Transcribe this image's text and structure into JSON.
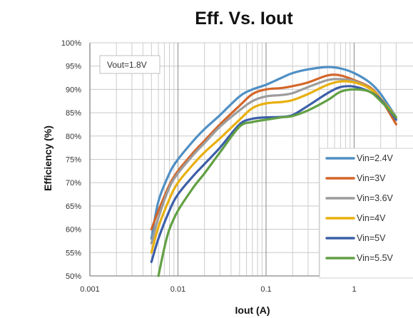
{
  "chart_data": {
    "type": "line",
    "title": "Eff. Vs. Iout",
    "xlabel": "Iout (A)",
    "ylabel": "Efficiency (%)",
    "x_scale": "log",
    "xlim": [
      0.001,
      3
    ],
    "ylim": [
      50,
      100
    ],
    "x_ticks": [
      {
        "value": 0.001,
        "label": "0.001"
      },
      {
        "value": 0.01,
        "label": "0.01"
      },
      {
        "value": 0.1,
        "label": "0.1"
      },
      {
        "value": 1,
        "label": "1"
      }
    ],
    "y_ticks": [
      {
        "value": 50,
        "label": "50%"
      },
      {
        "value": 55,
        "label": "55%"
      },
      {
        "value": 60,
        "label": "60%"
      },
      {
        "value": 65,
        "label": "65%"
      },
      {
        "value": 70,
        "label": "70%"
      },
      {
        "value": 75,
        "label": "75%"
      },
      {
        "value": 80,
        "label": "80%"
      },
      {
        "value": 85,
        "label": "85%"
      },
      {
        "value": 90,
        "label": "90%"
      },
      {
        "value": 95,
        "label": "95%"
      },
      {
        "value": 100,
        "label": "100%"
      }
    ],
    "grid": true,
    "legend_position": "right",
    "annotation": "Vout=1.8V",
    "series": [
      {
        "name": "Vin=2.4V",
        "color": "#4f8fc4",
        "points": [
          [
            0.005,
            58
          ],
          [
            0.006,
            66
          ],
          [
            0.008,
            72
          ],
          [
            0.01,
            75
          ],
          [
            0.015,
            79
          ],
          [
            0.02,
            81.5
          ],
          [
            0.03,
            84.5
          ],
          [
            0.05,
            88.5
          ],
          [
            0.07,
            90
          ],
          [
            0.1,
            91
          ],
          [
            0.15,
            92.5
          ],
          [
            0.2,
            93.5
          ],
          [
            0.3,
            94.3
          ],
          [
            0.5,
            94.8
          ],
          [
            0.7,
            94.5
          ],
          [
            1,
            93.5
          ],
          [
            1.5,
            91.5
          ],
          [
            2,
            89
          ],
          [
            3,
            84
          ]
        ]
      },
      {
        "name": "Vin=3V",
        "color": "#d3662a",
        "points": [
          [
            0.005,
            60
          ],
          [
            0.006,
            64
          ],
          [
            0.008,
            69.5
          ],
          [
            0.01,
            72.5
          ],
          [
            0.015,
            76.5
          ],
          [
            0.02,
            79
          ],
          [
            0.03,
            82.5
          ],
          [
            0.05,
            86.5
          ],
          [
            0.07,
            89
          ],
          [
            0.1,
            90
          ],
          [
            0.15,
            90.3
          ],
          [
            0.2,
            90.7
          ],
          [
            0.3,
            91.5
          ],
          [
            0.5,
            93
          ],
          [
            0.7,
            93
          ],
          [
            1,
            92
          ],
          [
            1.5,
            90.5
          ],
          [
            2,
            88
          ],
          [
            3,
            82.5
          ]
        ]
      },
      {
        "name": "Vin=3.6V",
        "color": "#9c9c9c",
        "points": [
          [
            0.005,
            57
          ],
          [
            0.006,
            62.5
          ],
          [
            0.008,
            69
          ],
          [
            0.01,
            72
          ],
          [
            0.015,
            76
          ],
          [
            0.02,
            78.5
          ],
          [
            0.03,
            82
          ],
          [
            0.05,
            85.5
          ],
          [
            0.07,
            87.5
          ],
          [
            0.1,
            88.5
          ],
          [
            0.15,
            88.8
          ],
          [
            0.2,
            89.2
          ],
          [
            0.3,
            90.5
          ],
          [
            0.5,
            92
          ],
          [
            0.7,
            92.2
          ],
          [
            1,
            91.8
          ],
          [
            1.5,
            90.3
          ],
          [
            2,
            88
          ],
          [
            3,
            83.5
          ]
        ]
      },
      {
        "name": "Vin=4V",
        "color": "#e8b00f",
        "points": [
          [
            0.005,
            55
          ],
          [
            0.006,
            60.5
          ],
          [
            0.008,
            66.5
          ],
          [
            0.01,
            70
          ],
          [
            0.015,
            74
          ],
          [
            0.02,
            76.5
          ],
          [
            0.03,
            79.5
          ],
          [
            0.05,
            83.5
          ],
          [
            0.07,
            86
          ],
          [
            0.1,
            87
          ],
          [
            0.15,
            87.3
          ],
          [
            0.2,
            87.7
          ],
          [
            0.3,
            89
          ],
          [
            0.5,
            91
          ],
          [
            0.7,
            91.7
          ],
          [
            1,
            91.5
          ],
          [
            1.5,
            90.2
          ],
          [
            2,
            88
          ],
          [
            3,
            84
          ]
        ]
      },
      {
        "name": "Vin=5V",
        "color": "#3d5fa8",
        "points": [
          [
            0.005,
            53
          ],
          [
            0.006,
            58
          ],
          [
            0.008,
            64
          ],
          [
            0.01,
            67.5
          ],
          [
            0.015,
            71.5
          ],
          [
            0.02,
            74
          ],
          [
            0.03,
            77.5
          ],
          [
            0.05,
            82.5
          ],
          [
            0.07,
            83.7
          ],
          [
            0.1,
            84
          ],
          [
            0.15,
            84.1
          ],
          [
            0.2,
            84.5
          ],
          [
            0.3,
            86.5
          ],
          [
            0.5,
            89.2
          ],
          [
            0.7,
            90.5
          ],
          [
            1,
            90.6
          ],
          [
            1.5,
            89.5
          ],
          [
            2,
            87.8
          ],
          [
            3,
            83.5
          ]
        ]
      },
      {
        "name": "Vin=5.5V",
        "color": "#62a043",
        "points": [
          [
            0.006,
            50
          ],
          [
            0.007,
            56
          ],
          [
            0.008,
            60
          ],
          [
            0.01,
            64
          ],
          [
            0.015,
            69
          ],
          [
            0.02,
            72
          ],
          [
            0.03,
            76.5
          ],
          [
            0.05,
            82
          ],
          [
            0.07,
            83
          ],
          [
            0.1,
            83.5
          ],
          [
            0.15,
            84
          ],
          [
            0.2,
            84.3
          ],
          [
            0.3,
            85.5
          ],
          [
            0.5,
            87.7
          ],
          [
            0.7,
            89.5
          ],
          [
            1,
            90
          ],
          [
            1.5,
            89.5
          ],
          [
            2,
            87.5
          ],
          [
            3,
            84
          ]
        ]
      }
    ]
  }
}
